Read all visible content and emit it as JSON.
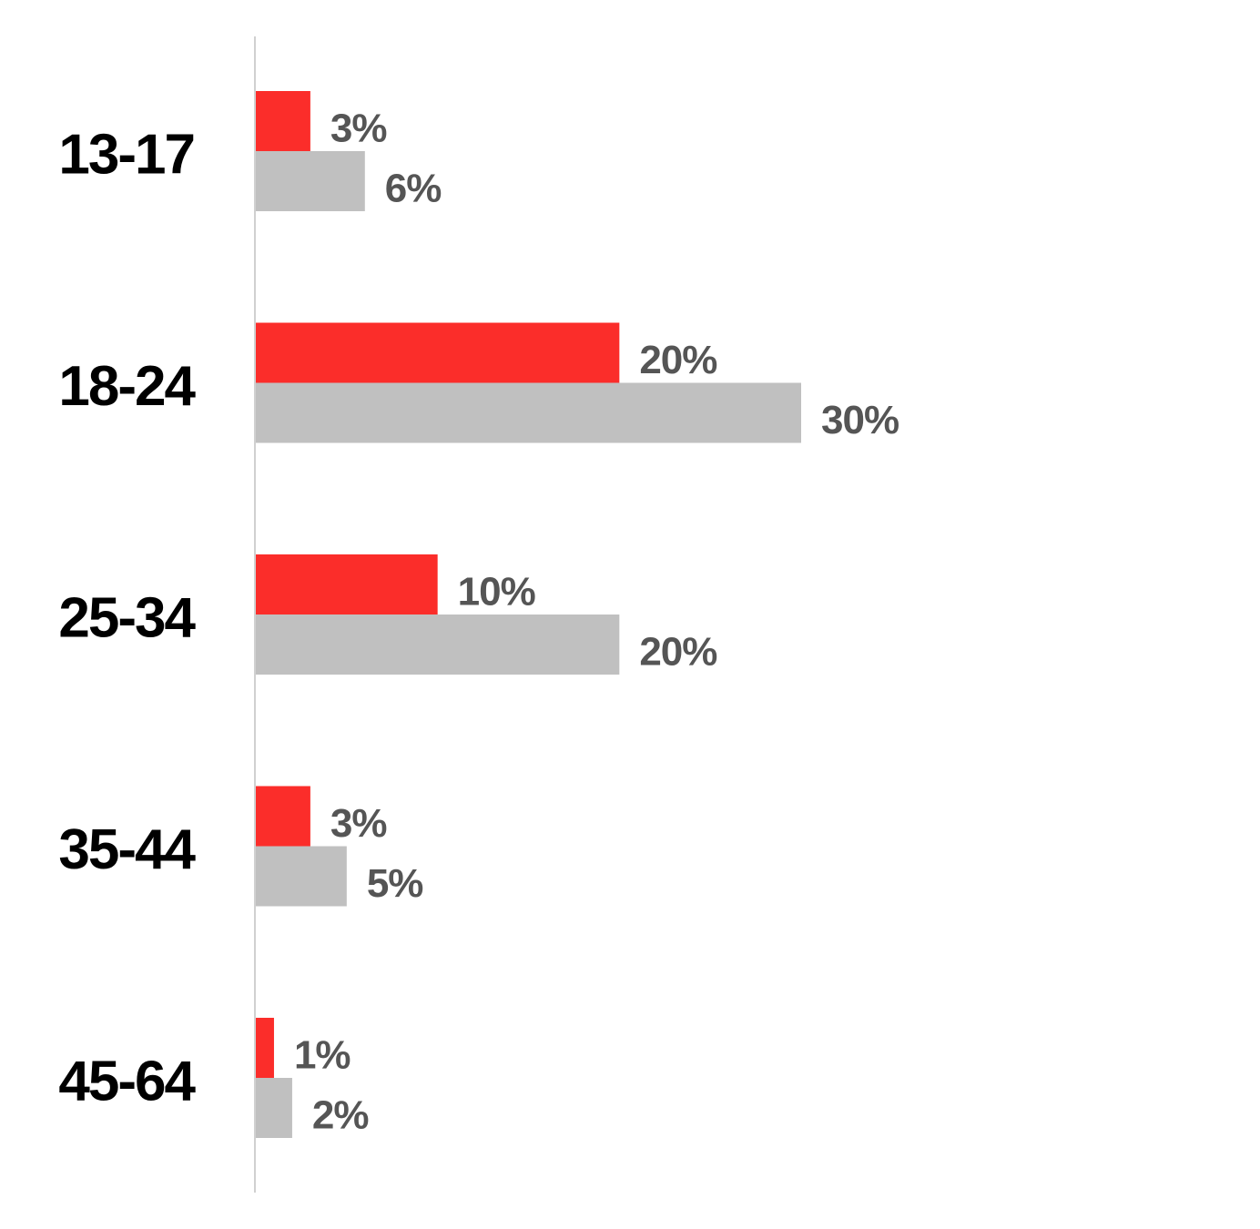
{
  "chart_data": {
    "type": "bar",
    "orientation": "horizontal",
    "categories": [
      "13-17",
      "18-24",
      "25-34",
      "35-44",
      "45-64"
    ],
    "series": [
      {
        "color": "#fb2d2a",
        "values": [
          3,
          20,
          10,
          3,
          1
        ],
        "value_labels": [
          "3%",
          "20%",
          "10%",
          "3%",
          "1%"
        ]
      },
      {
        "color": "#c0c0c0",
        "values": [
          6,
          30,
          20,
          5,
          2
        ],
        "value_labels": [
          "6%",
          "30%",
          "20%",
          "5%",
          "2%"
        ]
      }
    ]
  }
}
